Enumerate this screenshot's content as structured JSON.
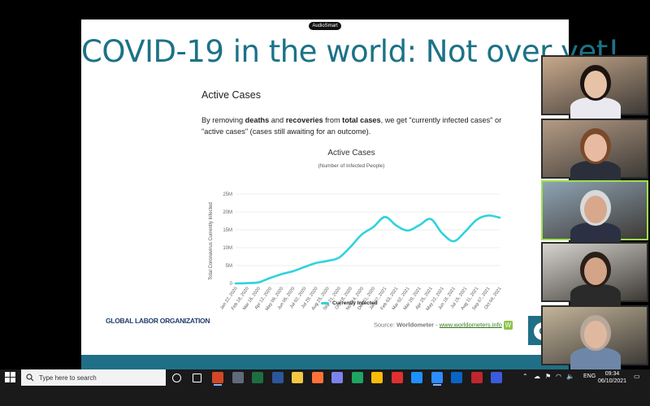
{
  "app": {
    "badge": "AudioSmart"
  },
  "slide": {
    "title": "COVID-19 in the world: Not over yet!",
    "heading": "Active Cases",
    "intro_parts": {
      "a": "By removing ",
      "b": "deaths",
      "c": " and ",
      "d": "recoveries",
      "e": " from ",
      "f": "total cases",
      "g": ", we get \"currently infected cases\" or \"active cases\" (cases still awaiting for an outcome)."
    },
    "org_name": "GLOBAL LABOR ORGANIZATION",
    "logo_letter": "G",
    "source_label": "Source: ",
    "source_name": "Worldometer",
    "source_sep": " - ",
    "source_link": "www.worldometers.info",
    "source_logo": "W"
  },
  "chart_data": {
    "type": "line",
    "title": "Active Cases",
    "subtitle": "(Number of Infected People)",
    "ylabel": "Total Coronavirus Currently Infected",
    "ylim": [
      0,
      25000000
    ],
    "yticks": [
      "0",
      "5M",
      "10M",
      "15M",
      "20M",
      "25M"
    ],
    "xticks": [
      "Jan 22, 2020",
      "Feb 18, 2020",
      "Mar 16, 2020",
      "Apr 12, 2020",
      "May 09, 2020",
      "Jun 05, 2020",
      "Jul 02, 2020",
      "Jul 29, 2020",
      "Aug 25, 2020",
      "Sep 21, 2020",
      "Oct 18, 2020",
      "Nov 14, 2020",
      "Dec 11, 2020",
      "Jan 07, 2021",
      "Feb 03, 2021",
      "Mar 02, 2021",
      "Mar 29, 2021",
      "Apr 25, 2021",
      "May 22, 2021",
      "Jun 18, 2021",
      "Jul 15, 2021",
      "Aug 11, 2021",
      "Sep 07, 2021",
      "Oct 04, 2021"
    ],
    "series": [
      {
        "name": "Currently Infected",
        "color": "#2ed3dc",
        "values": [
          0,
          0.06,
          0.3,
          1.5,
          2.6,
          3.4,
          4.6,
          5.7,
          6.3,
          7.2,
          10.2,
          13.7,
          15.8,
          18.6,
          16.2,
          14.8,
          16.3,
          18.0,
          14.0,
          11.8,
          14.5,
          17.8,
          19.0,
          18.4
        ]
      }
    ],
    "x_index_scale": "one value per x tick label",
    "value_unit": "millions",
    "grid": true,
    "legend": "bottom"
  },
  "participants": [
    {
      "id": "p1",
      "skin": "#e6c2a6",
      "hair": "#1b1410",
      "shirt": "#e9e9ef",
      "wall": "#c8a98c",
      "active": false
    },
    {
      "id": "p2",
      "skin": "#e7bba2",
      "hair": "#7a4a2a",
      "shirt": "#2b2f3a",
      "wall": "#b49b85",
      "active": false
    },
    {
      "id": "p3",
      "skin": "#d8a88c",
      "hair": "#d9d9d9",
      "shirt": "#2b3142",
      "wall": "#8fa4b4",
      "active": true
    },
    {
      "id": "p4",
      "skin": "#d4a489",
      "hair": "#2a1f18",
      "shirt": "#2a2a2a",
      "wall": "#d8d4cf",
      "active": false
    },
    {
      "id": "p5",
      "skin": "#e0b8a0",
      "hair": "#b8a89a",
      "shirt": "#6e87a8",
      "wall": "#c4b59a",
      "active": false
    }
  ],
  "taskbar": {
    "search_placeholder": "Type here to search",
    "tray_lang": "ENG",
    "time": "09:34",
    "date": "06/10/2021",
    "icons": [
      {
        "name": "cortana-icon",
        "color": "#ffffff"
      },
      {
        "name": "task-view-icon",
        "color": "#ffffff"
      },
      {
        "name": "powerpoint-icon",
        "color": "#d24726",
        "active": true
      },
      {
        "name": "calculator-icon",
        "color": "#5f6b7a"
      },
      {
        "name": "excel-icon",
        "color": "#1d6f42"
      },
      {
        "name": "word-icon",
        "color": "#2b579a"
      },
      {
        "name": "file-explorer-icon",
        "color": "#f2c744"
      },
      {
        "name": "firefox-icon",
        "color": "#ff7139"
      },
      {
        "name": "app-grid-icon",
        "color": "#7b83eb"
      },
      {
        "name": "edge-icon",
        "color": "#1fa463"
      },
      {
        "name": "chrome-icon",
        "color": "#fbbc05"
      },
      {
        "name": "acrobat-icon",
        "color": "#e02f2f"
      },
      {
        "name": "lync-icon",
        "color": "#1e90ff"
      },
      {
        "name": "zoom-icon",
        "color": "#2d8cff",
        "active": true
      },
      {
        "name": "outlook-icon",
        "color": "#0a64c4"
      },
      {
        "name": "media-icon",
        "color": "#c0262e"
      },
      {
        "name": "notes-icon",
        "color": "#3b5bdb"
      }
    ]
  }
}
